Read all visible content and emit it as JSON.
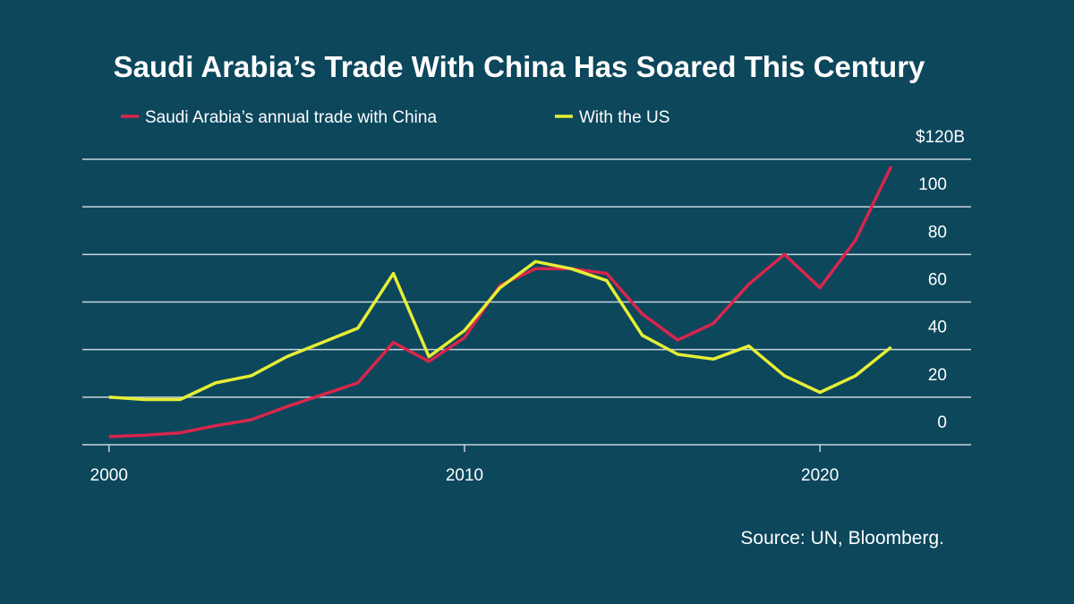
{
  "chart_data": {
    "type": "line",
    "title": "Saudi Arabia’s Trade With China Has Soared This Century",
    "source": "Source: UN, Bloomberg.",
    "x": [
      2000,
      2001,
      2002,
      2003,
      2004,
      2005,
      2006,
      2007,
      2008,
      2009,
      2010,
      2011,
      2012,
      2013,
      2014,
      2015,
      2016,
      2017,
      2018,
      2019,
      2020,
      2021,
      2022
    ],
    "series": [
      {
        "name": "Saudi Arabia’s annual trade with China",
        "color": "#d8264c",
        "values": [
          3.4,
          4,
          5,
          8,
          10.5,
          16,
          21,
          26,
          43,
          35,
          45,
          67,
          74,
          74,
          72,
          55,
          44,
          51,
          67.5,
          80,
          66,
          86,
          117
        ]
      },
      {
        "name": "With the US",
        "color": "#e6ef35",
        "values": [
          20,
          19,
          19,
          26,
          29,
          37,
          43,
          49,
          72,
          37,
          48,
          66,
          77,
          74,
          69,
          46,
          38,
          36,
          41.5,
          29,
          22,
          29,
          41
        ]
      }
    ],
    "xlim": [
      1999.25,
      2024.25
    ],
    "xticks": [
      2000,
      2010,
      2020
    ],
    "ylim": [
      0,
      120
    ],
    "yticks": [
      0,
      20,
      40,
      60,
      80,
      100,
      {
        "value": 120,
        "label": "$120B"
      }
    ],
    "grid": true
  }
}
